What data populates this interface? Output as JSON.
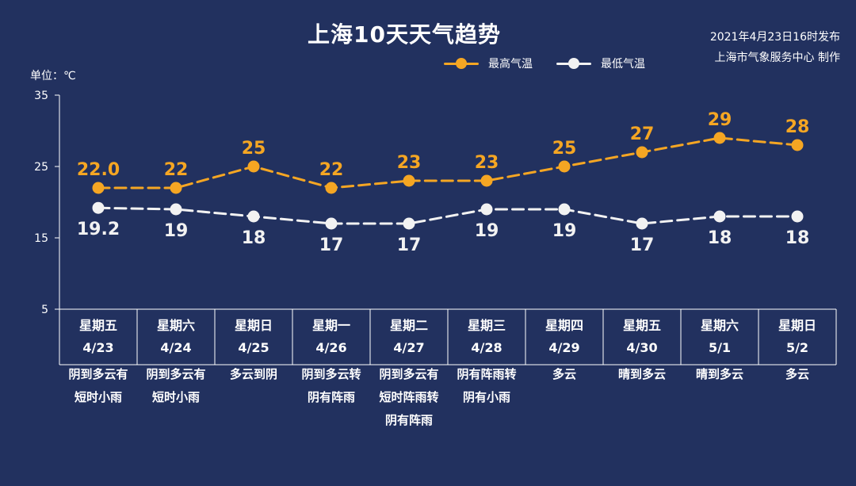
{
  "header": {
    "title": "上海10天天气趋势",
    "publish_line1": "2021年4月23日16时发布",
    "publish_line2": "上海市气象服务中心 制作",
    "unit": "单位：℃"
  },
  "colors": {
    "background": "#22315f",
    "high": "#f5a623",
    "low": "#f2f2f2",
    "axis": "#ffffff"
  },
  "chart_data": {
    "type": "line",
    "title": "上海10天天气趋势",
    "ylabel": "单位：℃",
    "ylim": [
      5,
      35
    ],
    "yticks": [
      5,
      15,
      25,
      35
    ],
    "grid": false,
    "legend_position": "top-right",
    "categories": [
      "4/23",
      "4/24",
      "4/25",
      "4/26",
      "4/27",
      "4/28",
      "4/29",
      "4/30",
      "5/1",
      "5/2"
    ],
    "series": [
      {
        "name": "最高气温",
        "color": "#f5a623",
        "values": [
          22.0,
          22,
          25,
          22,
          23,
          23,
          25,
          27,
          29,
          28
        ],
        "labels": [
          "22.0",
          "22",
          "25",
          "22",
          "23",
          "23",
          "25",
          "27",
          "29",
          "28"
        ]
      },
      {
        "name": "最低气温",
        "color": "#f2f2f2",
        "values": [
          19.2,
          19,
          18,
          17,
          17,
          19,
          19,
          17,
          18,
          18
        ],
        "labels": [
          "19.2",
          "19",
          "18",
          "17",
          "17",
          "19",
          "19",
          "17",
          "18",
          "18"
        ]
      }
    ]
  },
  "days": [
    {
      "weekday": "星期五",
      "date": "4/23",
      "condition": "阴到多云有\n短时小雨"
    },
    {
      "weekday": "星期六",
      "date": "4/24",
      "condition": "阴到多云有\n短时小雨"
    },
    {
      "weekday": "星期日",
      "date": "4/25",
      "condition": "多云到阴"
    },
    {
      "weekday": "星期一",
      "date": "4/26",
      "condition": "阴到多云转\n阴有阵雨"
    },
    {
      "weekday": "星期二",
      "date": "4/27",
      "condition": "阴到多云有\n短时阵雨转\n阴有阵雨"
    },
    {
      "weekday": "星期三",
      "date": "4/28",
      "condition": "阴有阵雨转\n阴有小雨"
    },
    {
      "weekday": "星期四",
      "date": "4/29",
      "condition": "多云"
    },
    {
      "weekday": "星期五",
      "date": "4/30",
      "condition": "晴到多云"
    },
    {
      "weekday": "星期六",
      "date": "5/1",
      "condition": "晴到多云"
    },
    {
      "weekday": "星期日",
      "date": "5/2",
      "condition": "多云"
    }
  ]
}
